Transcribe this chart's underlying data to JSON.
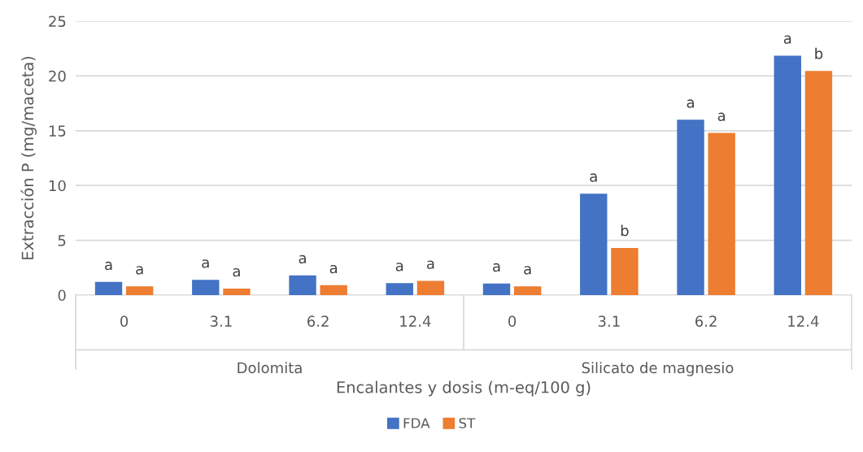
{
  "chart_data": {
    "type": "bar",
    "xlabel": "Encalantes y dosis (m-eq/100 g)",
    "ylabel": "Extracción P (mg/maceta)",
    "categories": [
      "0",
      "3.1",
      "6.2",
      "12.4",
      "0",
      "3.1",
      "6.2",
      "12.4"
    ],
    "series": [
      {
        "name": "FDA",
        "color": "#4472c4",
        "values": [
          1.2,
          1.4,
          1.8,
          1.1,
          1.05,
          9.25,
          16.0,
          21.85
        ],
        "value_labels": [
          "a",
          "a",
          "a",
          "a",
          "a",
          "a",
          "a",
          "a"
        ]
      },
      {
        "name": "ST",
        "color": "#ed7d31",
        "values": [
          0.8,
          0.6,
          0.9,
          1.3,
          0.8,
          4.3,
          14.8,
          20.45
        ],
        "value_labels": [
          "a",
          "a",
          "a",
          "a",
          "a",
          "b",
          "a",
          "b"
        ]
      }
    ],
    "annotations": [
      "Dolomita",
      "Silicato de magnesio"
    ],
    "ylim": [
      0,
      25
    ],
    "yticks": [
      0,
      5,
      10,
      15,
      20,
      25
    ],
    "grid": "y",
    "legend": "bottom"
  }
}
